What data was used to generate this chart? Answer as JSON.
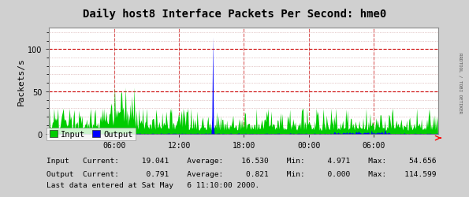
{
  "title": "Daily host8 Interface Packets Per Second: hme0",
  "ylabel": "Packets/s",
  "yticks": [
    0,
    50,
    100
  ],
  "ymax": 125,
  "xtick_labels": [
    "06:00",
    "12:00",
    "18:00",
    "00:00",
    "06:00"
  ],
  "bg_color": "#d0d0d0",
  "plot_bg_color": "#ffffff",
  "grid_color_major": "#cc0000",
  "grid_color_minor": "#cc9999",
  "input_color": "#00cc00",
  "output_color": "#0000ff",
  "title_fontsize": 10,
  "axis_fontsize": 7,
  "label_fontsize": 8,
  "legend_input": "Input",
  "legend_output": "Output",
  "stats_line1": "Input   Current:     19.041    Average:    16.530    Min:     4.971    Max:     54.656",
  "stats_line2": "Output  Current:      0.791    Average:     0.821    Min:     0.000    Max:    114.599",
  "footer_text": "Last data entered at Sat May   6 11:10:00 2000.",
  "watermark": "RRDTOOL / TOBI OETIKER",
  "num_points": 500
}
